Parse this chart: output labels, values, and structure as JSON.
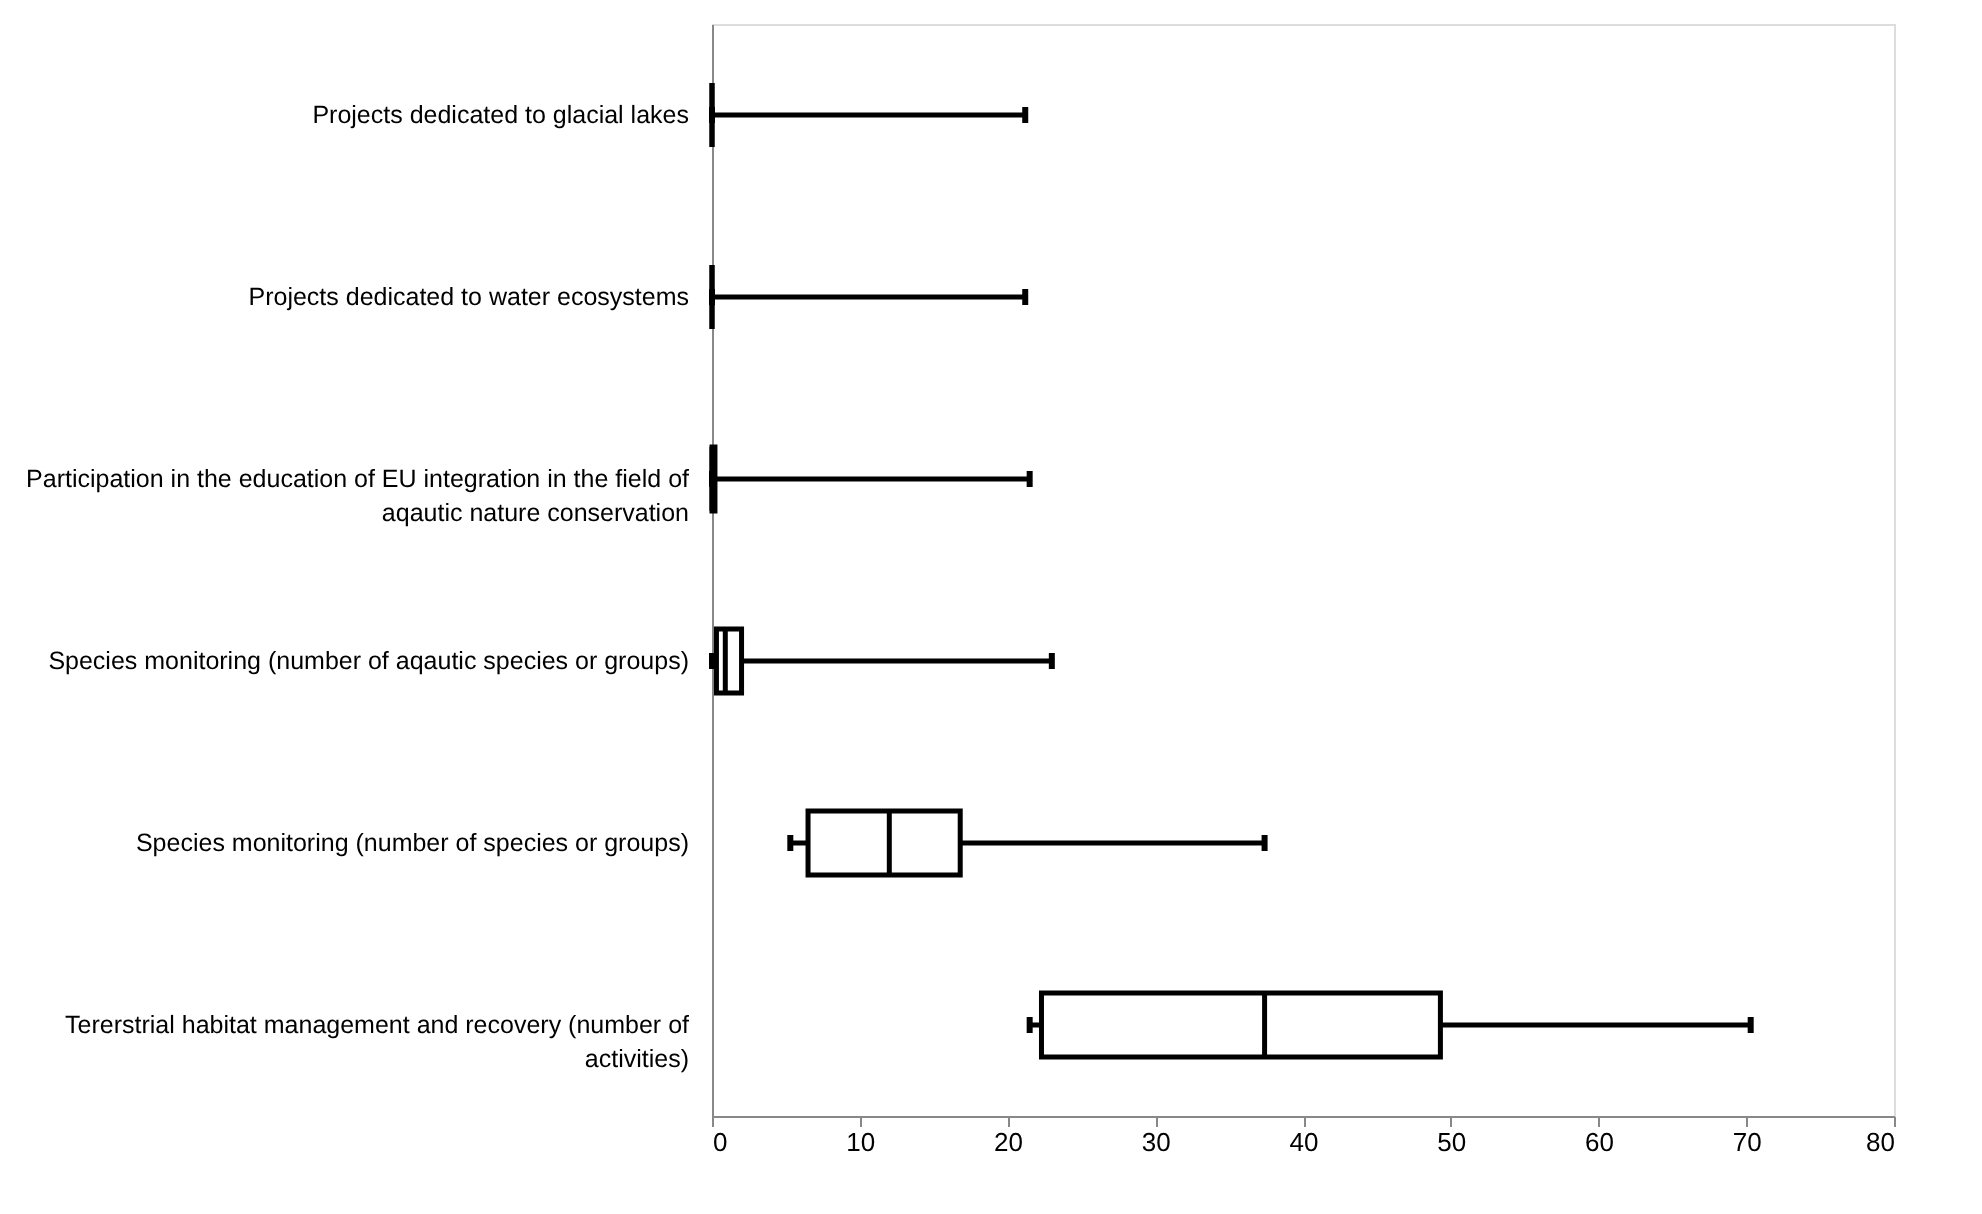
{
  "chart_data": {
    "type": "box",
    "orientation": "horizontal",
    "categories": [
      "Projects dedicated to glacial lakes",
      "Projects dedicated to water ecosystems",
      "Participation in the education of EU integration in the field of aqautic nature conservation",
      "Species monitoring (number of aqautic species or groups)",
      "Species monitoring (number of species or groups)",
      "Tererstrial habitat management and recovery (number of activities)"
    ],
    "boxes": [
      {
        "low": 0,
        "q1": 0,
        "median": 0,
        "q3": 0,
        "high": 21.2
      },
      {
        "low": 0,
        "q1": 0,
        "median": 0,
        "q3": 0,
        "high": 21.2
      },
      {
        "low": 0,
        "q1": 0,
        "median": 0,
        "q3": 0.2,
        "high": 21.5
      },
      {
        "low": 0,
        "q1": 0.3,
        "median": 0.9,
        "q3": 2,
        "high": 23
      },
      {
        "low": 5.3,
        "q1": 6.5,
        "median": 12,
        "q3": 16.8,
        "high": 37.4
      },
      {
        "low": 21.5,
        "q1": 22.3,
        "median": 37.4,
        "q3": 49.3,
        "high": 70.3
      }
    ],
    "color": "#000000",
    "xlim": [
      0,
      80
    ],
    "xticks": [
      0,
      10,
      20,
      30,
      40,
      50,
      60,
      70,
      80
    ],
    "grid": false
  }
}
